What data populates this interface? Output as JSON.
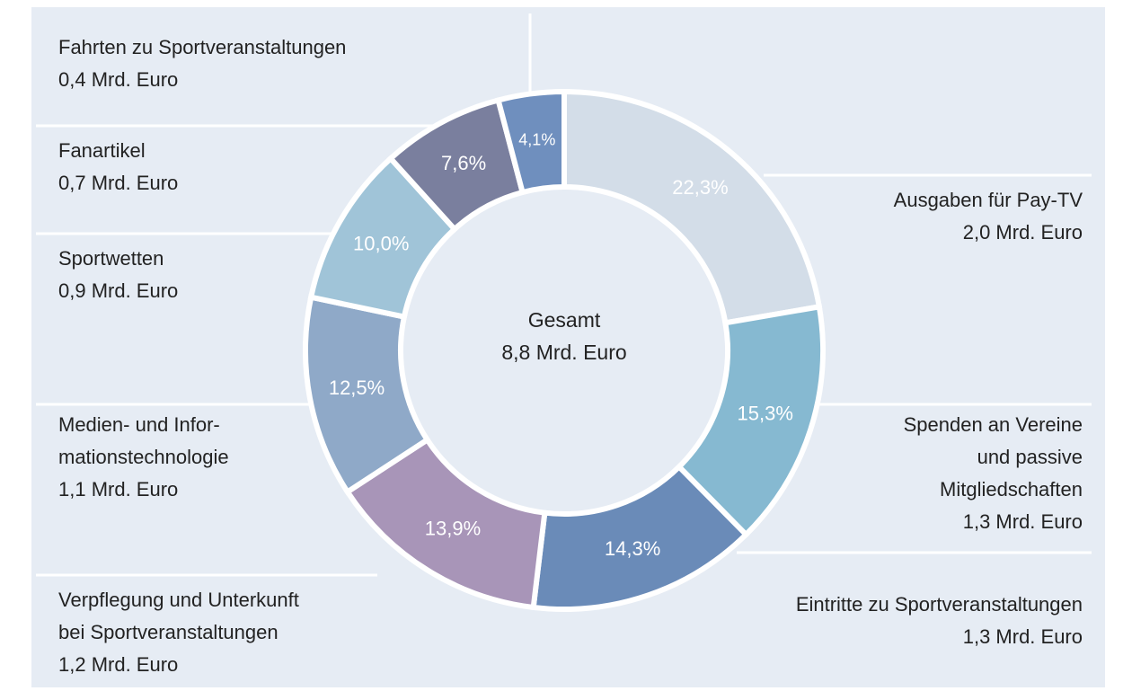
{
  "chart_data": {
    "type": "donut",
    "categories": [
      "Ausgaben für Pay-TV",
      "Spenden an Vereine\nund passive\nMitgliedschaften",
      "Eintritte zu Sportveranstaltungen",
      "Verpflegung und Unterkunft\nbei Sportveranstaltungen",
      "Medien- und Infor-\nmationstechnologie",
      "Sportwetten",
      "Fanartikel",
      "Fahrten zu Sportveranstaltungen"
    ],
    "values": [
      22.3,
      15.3,
      14.3,
      13.9,
      12.5,
      10.0,
      7.6,
      4.1
    ],
    "value_labels": [
      "22,3%",
      "15,3%",
      "14,3%",
      "13,9%",
      "12,5%",
      "10,0%",
      "7,6%",
      "4,1%"
    ],
    "amount_labels": [
      "2,0 Mrd. Euro",
      "1,3 Mrd. Euro",
      "1,3 Mrd. Euro",
      "1,2 Mrd. Euro",
      "1,1 Mrd. Euro",
      "0,9 Mrd. Euro",
      "0,7 Mrd. Euro",
      "0,4 Mrd. Euro"
    ],
    "colors": [
      "#d3dde8",
      "#86b9d1",
      "#6a8bb8",
      "#a895b8",
      "#8fa9c8",
      "#a0c4d8",
      "#7a7f9e",
      "#6f8fbe"
    ],
    "center_label": [
      "Gesamt",
      "8,8 Mrd. Euro"
    ]
  }
}
